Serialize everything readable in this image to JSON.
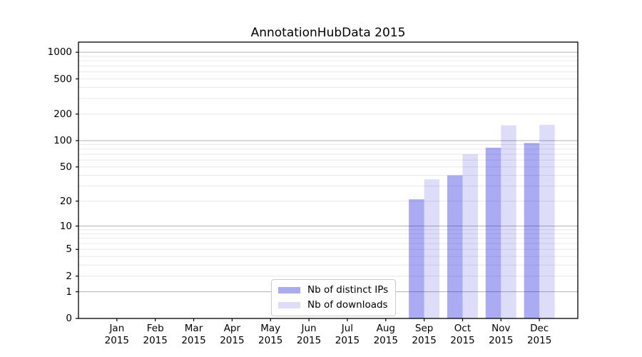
{
  "chart_data": {
    "type": "bar",
    "title": "AnnotationHubData 2015",
    "categories": [
      "Jan",
      "Feb",
      "Mar",
      "Apr",
      "May",
      "Jun",
      "Jul",
      "Aug",
      "Sep",
      "Oct",
      "Nov",
      "Dec"
    ],
    "year_label": "2015",
    "series": [
      {
        "name": "Nb of distinct IPs",
        "color": "rgba(13,13,222,0.35)",
        "solid_color": "#aaaaf0",
        "values": [
          0,
          0,
          0,
          0,
          0,
          0,
          0,
          0,
          21,
          40,
          83,
          94
        ]
      },
      {
        "name": "Nb of downloads",
        "color": "rgba(13,13,222,0.14)",
        "solid_color": "#dcdcf8",
        "values": [
          0,
          0,
          0,
          0,
          0,
          0,
          0,
          0,
          36,
          70,
          149,
          151
        ]
      }
    ],
    "yscale": "log1p",
    "yticks": [
      0,
      1,
      2,
      5,
      10,
      20,
      50,
      100,
      200,
      500,
      1000
    ],
    "major_gridlines": [
      1,
      10,
      100,
      1000
    ],
    "ylim": [
      0,
      1300
    ],
    "grid": "on",
    "legend_position": "lower center-left inside plot",
    "colors": {
      "axis": "#000000",
      "major_grid": "#bbbbbb",
      "minor_grid": "#e8e8e8",
      "background": "#ffffff"
    }
  }
}
